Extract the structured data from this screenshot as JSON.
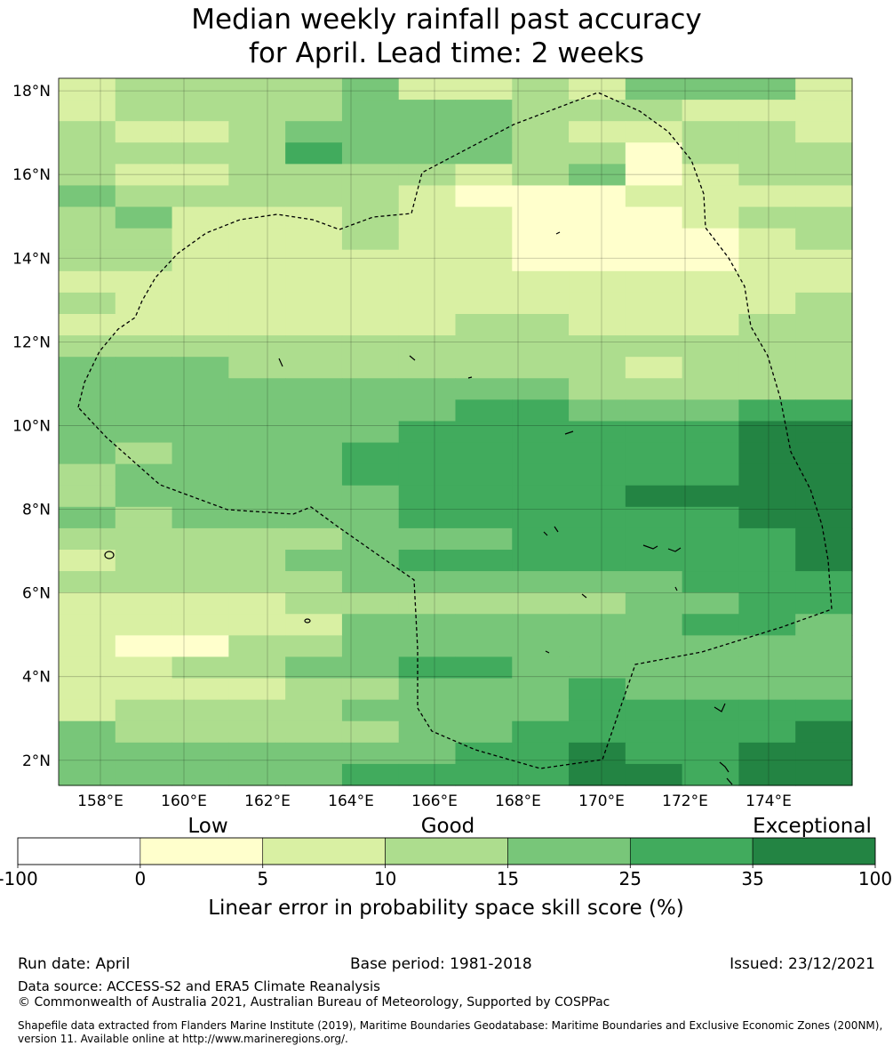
{
  "title": {
    "line1": "Median weekly rainfall past accuracy",
    "line2": "for April. Lead time: 2 weeks"
  },
  "map": {
    "lon_range": [
      157,
      176
    ],
    "lat_range": [
      1.4,
      18.3
    ],
    "lat_labels": [
      "18°N",
      "16°N",
      "14°N",
      "12°N",
      "10°N",
      "8°N",
      "6°N",
      "4°N",
      "2°N"
    ],
    "lon_labels": [
      "158°E",
      "160°E",
      "162°E",
      "164°E",
      "166°E",
      "168°E",
      "170°E",
      "172°E",
      "174°E"
    ],
    "grid": "on",
    "boundary_style": "dashed black",
    "land": "small atolls shown as black outlines"
  },
  "legend": {
    "quality_labels": [
      "Low",
      "Good",
      "Exceptional"
    ],
    "bins": [
      {
        "from": -100,
        "to": 0,
        "color": "#ffffff"
      },
      {
        "from": 0,
        "to": 5,
        "color": "#ffffcc"
      },
      {
        "from": 5,
        "to": 10,
        "color": "#d9f0a3"
      },
      {
        "from": 10,
        "to": 15,
        "color": "#addd8e"
      },
      {
        "from": 15,
        "to": 25,
        "color": "#78c679"
      },
      {
        "from": 25,
        "to": 35,
        "color": "#41ab5d"
      },
      {
        "from": 35,
        "to": 100,
        "color": "#238443"
      }
    ],
    "tick_labels": [
      "-100",
      "0",
      "5",
      "10",
      "15",
      "25",
      "35",
      "100"
    ],
    "axis_label": "Linear error in probability space skill score (%)"
  },
  "footer": {
    "run_date": "Run date: April",
    "base_period": "Base period: 1981-2018",
    "issued": "Issued: 23/12/2021",
    "data_source": "Data source: ACCESS-S2 and ERA5 Climate Reanalysis",
    "copyright": "© Commonwealth of Australia 2021, Australian Bureau of Meteorology, Supported by COSPPac",
    "shapefile_line1": "Shapefile data extracted from Flanders Marine Institute (2019), Maritime Boundaries Geodatabase: Maritime Boundaries and Exclusive Economic Zones (200NM),",
    "shapefile_line2": "version 11. Available online at http://www.marineregions.org/."
  },
  "chart_data": {
    "type": "heatmap",
    "title": "Median weekly rainfall past accuracy for April. Lead time: 2 weeks",
    "value_meaning": "LEPS skill score category index (0: -100 to 0, 1: 0-5, 2: 5-10, 3: 10-15, 4: 15-25, 5: 25-35, 6: 35-100)",
    "x_range": [
      157,
      176
    ],
    "y_range": [
      1.4,
      18.3
    ],
    "rows_from_north": [
      "23333422324442",
      "23333444333222",
      "32234444322332",
      "33335444331333",
      "32233332341233",
      "43333321112222",
      "34222322111233",
      "33222322111123",
      "33222222111122",
      "22222222222222",
      "32222222222223",
      "22222223322233",
      "33333333333333",
      "44433333332333",
      "44444444433333",
      "44444445544455",
      "44444455555566",
      "43444555555566",
      "34444555555566",
      "34444455556666",
      "43444455555566",
      "33333444555556",
      "23334455555556",
      "33333444444555",
      "22223333334455",
      "22222444444554",
      "21133444444444",
      "22334455444444",
      "22223344454444",
      "23333444455555",
      "43333344555556",
      "44444445565566",
      "44444555566566"
    ]
  }
}
